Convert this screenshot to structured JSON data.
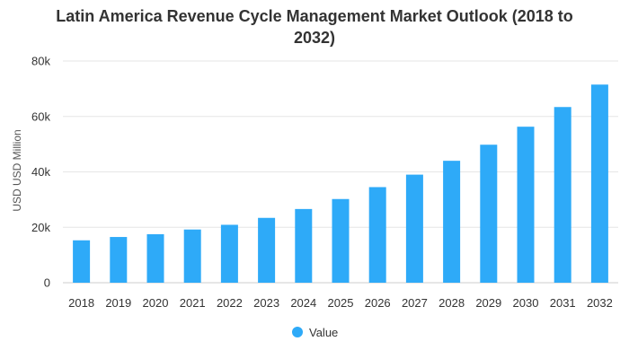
{
  "chart_data": {
    "type": "bar",
    "title_line1": "Latin America Revenue Cycle Management Market Outlook (2018 to",
    "title_line2": "2032)",
    "ylabel": "USD USD Million",
    "xlabel": "",
    "categories": [
      "2018",
      "2019",
      "2020",
      "2021",
      "2022",
      "2023",
      "2024",
      "2025",
      "2026",
      "2027",
      "2028",
      "2029",
      "2030",
      "2031",
      "2032"
    ],
    "series": [
      {
        "name": "Value",
        "values": [
          15300,
          16500,
          17500,
          19200,
          20900,
          23400,
          26600,
          30200,
          34500,
          39000,
          44000,
          49800,
          56300,
          63400,
          71500
        ]
      }
    ],
    "ylim": [
      0,
      80000
    ],
    "yticks": [
      0,
      20000,
      40000,
      60000,
      80000
    ],
    "ytick_labels": [
      "0",
      "20k",
      "40k",
      "60k",
      "80k"
    ],
    "grid": true,
    "legend": "bottom-center",
    "bar_color": "#2eaaf8"
  }
}
